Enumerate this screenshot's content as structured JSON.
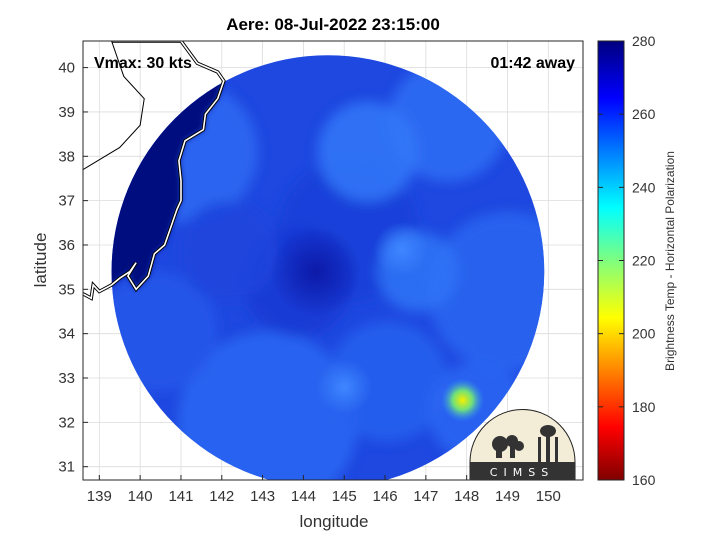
{
  "chart_data": {
    "type": "heatmap",
    "title": "Aere: 08-Jul-2022 23:15:00",
    "xlabel": "longitude",
    "ylabel": "latitude",
    "xlim": [
      138.6,
      150.85
    ],
    "ylim": [
      30.7,
      40.6
    ],
    "x_ticks": [
      139,
      140,
      141,
      142,
      143,
      144,
      145,
      146,
      147,
      148,
      149,
      150
    ],
    "y_ticks": [
      31,
      32,
      33,
      34,
      35,
      36,
      37,
      38,
      39,
      40
    ],
    "grid": true,
    "annotations": {
      "vmax": "Vmax: 30 kts",
      "time_offset": "01:42 away"
    },
    "colorbar": {
      "label": "Brightness Temp - Horizontal Polarization",
      "range": [
        160,
        280
      ],
      "ticks": [
        160,
        180,
        200,
        220,
        240,
        260,
        280
      ],
      "colormap": "jet"
    },
    "swath": {
      "center": [
        144.6,
        35.4
      ],
      "radius_deg": 5.3
    },
    "features": [
      {
        "name": "storm-center",
        "lon": 144.3,
        "lat": 35.4,
        "value": 266
      },
      {
        "name": "warm-band-east",
        "lon": 146.4,
        "lat": 35.9,
        "value": 250
      },
      {
        "name": "spiral-band-south",
        "lon": 145.0,
        "lat": 32.8,
        "value": 253
      },
      {
        "name": "warm-spot",
        "lon": 147.9,
        "lat": 32.5,
        "value": 205
      }
    ],
    "coastline": {
      "land_region": "Japan (Honshu east coast)",
      "points": [
        [
          139.3,
          40.6
        ],
        [
          141.0,
          40.6
        ],
        [
          141.4,
          40.1
        ],
        [
          141.9,
          39.9
        ],
        [
          142.05,
          39.7
        ],
        [
          141.9,
          39.3
        ],
        [
          141.6,
          38.95
        ],
        [
          141.55,
          38.6
        ],
        [
          141.1,
          38.35
        ],
        [
          140.95,
          37.9
        ],
        [
          141.0,
          37.45
        ],
        [
          141.0,
          37.0
        ],
        [
          140.9,
          36.8
        ],
        [
          140.75,
          36.4
        ],
        [
          140.6,
          36.0
        ],
        [
          140.35,
          35.8
        ],
        [
          140.2,
          35.3
        ],
        [
          139.9,
          35.0
        ],
        [
          139.7,
          35.3
        ],
        [
          139.9,
          35.6
        ],
        [
          139.75,
          35.4
        ],
        [
          139.5,
          35.25
        ],
        [
          139.3,
          35.1
        ],
        [
          139.0,
          34.95
        ],
        [
          138.85,
          35.1
        ],
        [
          138.8,
          34.8
        ],
        [
          138.6,
          34.9
        ]
      ]
    }
  },
  "logo": {
    "text": "CIMSS"
  }
}
